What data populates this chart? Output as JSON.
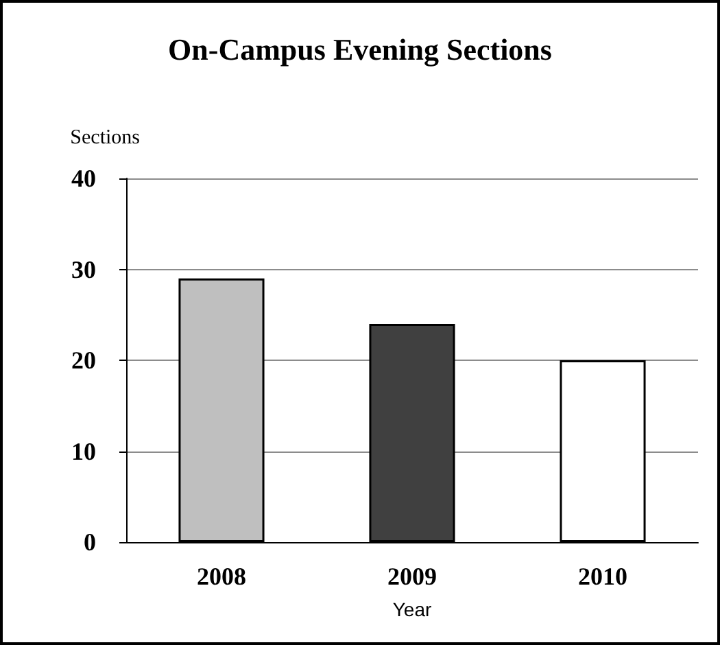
{
  "chart_data": {
    "type": "bar",
    "title": "On-Campus Evening Sections",
    "ylabel": "Sections",
    "xlabel": "Year",
    "categories": [
      "2008",
      "2009",
      "2010"
    ],
    "values": [
      29,
      24,
      20
    ],
    "colors": [
      "#bfbfbf",
      "#404040",
      "#ffffff"
    ],
    "ylim": [
      0,
      40
    ],
    "yticks": [
      0,
      10,
      20,
      30,
      40
    ],
    "grid": "y"
  }
}
